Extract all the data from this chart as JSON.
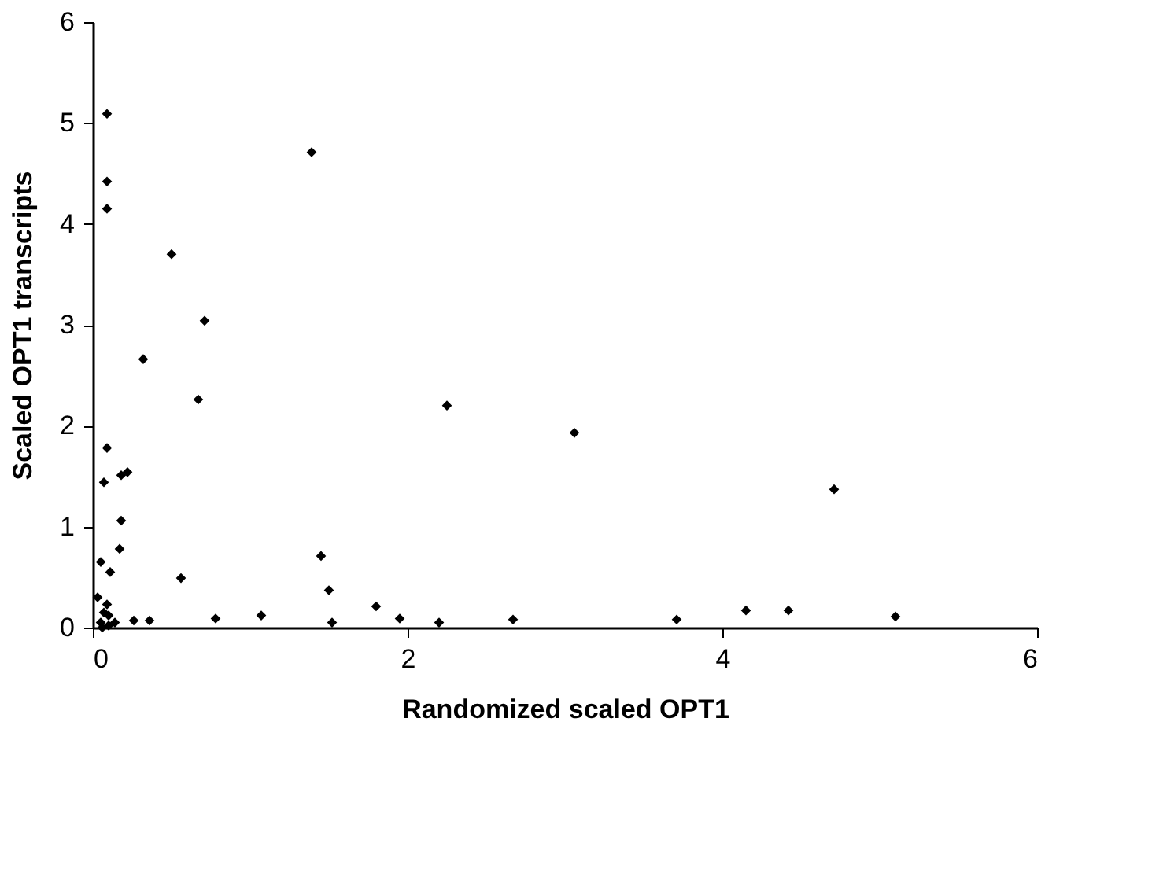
{
  "chart_data": {
    "type": "scatter",
    "xlabel": "Randomized scaled OPT1",
    "ylabel": "Scaled OPT1 transcripts",
    "xlim": [
      0,
      6
    ],
    "ylim": [
      0,
      6
    ],
    "xticks": [
      0,
      2,
      4,
      6
    ],
    "yticks": [
      0,
      1,
      2,
      3,
      4,
      5,
      6
    ],
    "grid": false,
    "marker": "diamond",
    "series": [
      {
        "color": "#000000",
        "x": [
          0.09,
          0.09,
          0.09,
          1.39,
          0.5,
          0.71,
          0.32,
          0.67,
          0.09,
          0.07,
          0.18,
          0.22,
          0.18,
          0.17,
          0.05,
          0.11,
          0.56,
          1.45,
          1.5,
          1.8,
          1.95,
          0.03,
          0.09,
          0.05,
          0.1,
          0.07,
          0.14,
          0.1,
          0.06,
          0.26,
          0.36,
          0.78,
          1.07,
          1.52,
          2.25,
          3.06,
          4.71,
          2.2,
          2.67,
          3.71,
          4.15,
          4.42,
          5.1
        ],
        "values": [
          5.09,
          4.42,
          4.15,
          4.71,
          3.7,
          3.04,
          2.66,
          2.26,
          1.78,
          1.44,
          1.51,
          1.54,
          1.06,
          0.78,
          0.65,
          0.55,
          0.49,
          0.71,
          0.37,
          0.21,
          0.09,
          0.3,
          0.23,
          0.05,
          0.02,
          0.15,
          0.05,
          0.12,
          0.0,
          0.07,
          0.07,
          0.09,
          0.12,
          0.05,
          2.2,
          1.93,
          1.37,
          0.05,
          0.08,
          0.08,
          0.17,
          0.17,
          0.11
        ]
      }
    ]
  }
}
